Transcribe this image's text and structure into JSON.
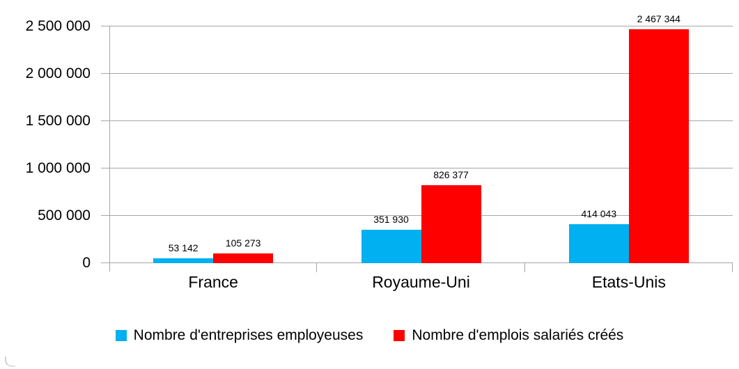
{
  "chart_data": {
    "type": "bar",
    "title": "",
    "xlabel": "",
    "ylabel": "",
    "grid": true,
    "legend_position": "bottom",
    "categories": [
      "France",
      "Royaume-Uni",
      "Etats-Unis"
    ],
    "series": [
      {
        "name": "Nombre d'entreprises employeuses",
        "color": "#00B0F0",
        "values": [
          53142,
          351930,
          414043
        ],
        "value_labels": [
          "53 142",
          "351 930",
          "414 043"
        ]
      },
      {
        "name": "Nombre d'emplois salariés créés",
        "color": "#FF0000",
        "values": [
          105273,
          826377,
          2467344
        ],
        "value_labels": [
          "105 273",
          "826 377",
          "2 467 344"
        ]
      }
    ],
    "y_axis": {
      "min": 0,
      "max": 2500000,
      "step": 500000,
      "tick_labels": [
        "0",
        "500 000",
        "1 000 000",
        "1 500 000",
        "2 000 000",
        "2 500 000"
      ]
    }
  },
  "colors": {
    "series_blue": "#00B0F0",
    "series_red": "#FF0000",
    "axis_gray": "#A6A6A6",
    "text": "#000000",
    "background": "#FFFFFF"
  }
}
